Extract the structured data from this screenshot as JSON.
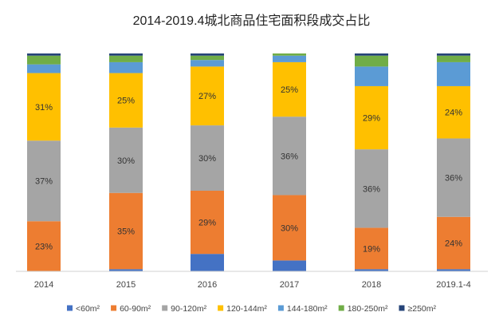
{
  "chart_data": {
    "type": "bar",
    "stacked": true,
    "normalized": true,
    "title": "2014-2019.4城北商品住宅面积段成交占比",
    "xlabel": "",
    "ylabel": "",
    "ylim": [
      0,
      100
    ],
    "grid": false,
    "legend": "bottom",
    "categories": [
      "2014",
      "2015",
      "2016",
      "2017",
      "2018",
      "2019.1-4"
    ],
    "series": [
      {
        "name": "<60m²",
        "color": "#4472C4",
        "values": [
          0,
          1,
          8,
          5,
          1,
          1
        ],
        "labels": [
          "",
          "",
          "",
          "",
          "",
          ""
        ]
      },
      {
        "name": "60-90m²",
        "color": "#ED7D31",
        "values": [
          23,
          35,
          29,
          30,
          19,
          24
        ],
        "labels": [
          "23%",
          "35%",
          "29%",
          "30%",
          "19%",
          "24%"
        ]
      },
      {
        "name": "90-120m²",
        "color": "#A5A5A5",
        "values": [
          37,
          30,
          30,
          36,
          36,
          36
        ],
        "labels": [
          "37%",
          "30%",
          "30%",
          "36%",
          "36%",
          "36%"
        ]
      },
      {
        "name": "120-144m²",
        "color": "#FFC000",
        "values": [
          31,
          25,
          27,
          25,
          29,
          24
        ],
        "labels": [
          "31%",
          "25%",
          "27%",
          "25%",
          "29%",
          "24%"
        ]
      },
      {
        "name": "144-180m²",
        "color": "#5B9BD5",
        "values": [
          4,
          5,
          3,
          3,
          9,
          11
        ],
        "labels": [
          "",
          "",
          "",
          "",
          "",
          ""
        ]
      },
      {
        "name": "180-250m²",
        "color": "#70AD47",
        "values": [
          4,
          3,
          2,
          1,
          5,
          3
        ],
        "labels": [
          "",
          "",
          "",
          "",
          "",
          ""
        ]
      },
      {
        "name": "≥250m²",
        "color": "#264478",
        "values": [
          1,
          1,
          1,
          0,
          1,
          1
        ],
        "labels": [
          "",
          "",
          "",
          "",
          "",
          ""
        ]
      }
    ]
  }
}
